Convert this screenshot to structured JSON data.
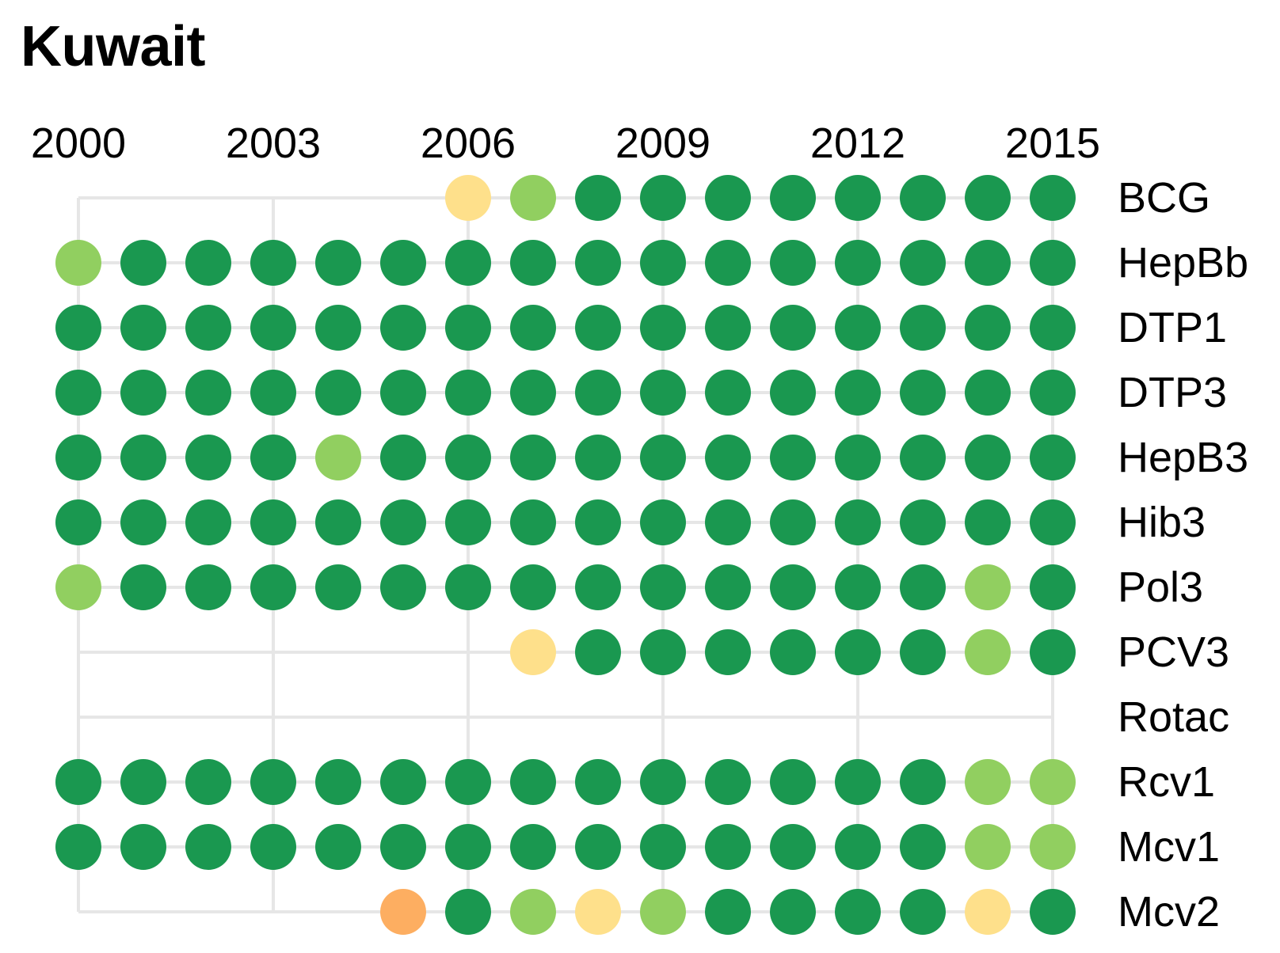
{
  "title": "Kuwait",
  "chart_data": {
    "type": "dot-matrix",
    "title": "Kuwait",
    "years": [
      2000,
      2001,
      2002,
      2003,
      2004,
      2005,
      2006,
      2007,
      2008,
      2009,
      2010,
      2011,
      2012,
      2013,
      2014,
      2015
    ],
    "x_tick_labels": [
      "2000",
      "2003",
      "2006",
      "2009",
      "2012",
      "2015"
    ],
    "grid": true,
    "color_levels": {
      "dark_green": "#1a9850",
      "light_green": "#91cf60",
      "yellow": "#fee08b",
      "orange": "#fdae61"
    },
    "rows": [
      {
        "label": "BCG",
        "values": [
          null,
          null,
          null,
          null,
          null,
          null,
          "yellow",
          "light_green",
          "dark_green",
          "dark_green",
          "dark_green",
          "dark_green",
          "dark_green",
          "dark_green",
          "dark_green",
          "dark_green"
        ]
      },
      {
        "label": "HepBb",
        "values": [
          "light_green",
          "dark_green",
          "dark_green",
          "dark_green",
          "dark_green",
          "dark_green",
          "dark_green",
          "dark_green",
          "dark_green",
          "dark_green",
          "dark_green",
          "dark_green",
          "dark_green",
          "dark_green",
          "dark_green",
          "dark_green"
        ]
      },
      {
        "label": "DTP1",
        "values": [
          "dark_green",
          "dark_green",
          "dark_green",
          "dark_green",
          "dark_green",
          "dark_green",
          "dark_green",
          "dark_green",
          "dark_green",
          "dark_green",
          "dark_green",
          "dark_green",
          "dark_green",
          "dark_green",
          "dark_green",
          "dark_green"
        ]
      },
      {
        "label": "DTP3",
        "values": [
          "dark_green",
          "dark_green",
          "dark_green",
          "dark_green",
          "dark_green",
          "dark_green",
          "dark_green",
          "dark_green",
          "dark_green",
          "dark_green",
          "dark_green",
          "dark_green",
          "dark_green",
          "dark_green",
          "dark_green",
          "dark_green"
        ]
      },
      {
        "label": "HepB3",
        "values": [
          "dark_green",
          "dark_green",
          "dark_green",
          "dark_green",
          "light_green",
          "dark_green",
          "dark_green",
          "dark_green",
          "dark_green",
          "dark_green",
          "dark_green",
          "dark_green",
          "dark_green",
          "dark_green",
          "dark_green",
          "dark_green"
        ]
      },
      {
        "label": "Hib3",
        "values": [
          "dark_green",
          "dark_green",
          "dark_green",
          "dark_green",
          "dark_green",
          "dark_green",
          "dark_green",
          "dark_green",
          "dark_green",
          "dark_green",
          "dark_green",
          "dark_green",
          "dark_green",
          "dark_green",
          "dark_green",
          "dark_green"
        ]
      },
      {
        "label": "Pol3",
        "values": [
          "light_green",
          "dark_green",
          "dark_green",
          "dark_green",
          "dark_green",
          "dark_green",
          "dark_green",
          "dark_green",
          "dark_green",
          "dark_green",
          "dark_green",
          "dark_green",
          "dark_green",
          "dark_green",
          "light_green",
          "dark_green"
        ]
      },
      {
        "label": "PCV3",
        "values": [
          null,
          null,
          null,
          null,
          null,
          null,
          null,
          "yellow",
          "dark_green",
          "dark_green",
          "dark_green",
          "dark_green",
          "dark_green",
          "dark_green",
          "light_green",
          "dark_green"
        ]
      },
      {
        "label": "Rotac",
        "values": [
          null,
          null,
          null,
          null,
          null,
          null,
          null,
          null,
          null,
          null,
          null,
          null,
          null,
          null,
          null,
          null
        ]
      },
      {
        "label": "Rcv1",
        "values": [
          "dark_green",
          "dark_green",
          "dark_green",
          "dark_green",
          "dark_green",
          "dark_green",
          "dark_green",
          "dark_green",
          "dark_green",
          "dark_green",
          "dark_green",
          "dark_green",
          "dark_green",
          "dark_green",
          "light_green",
          "light_green"
        ]
      },
      {
        "label": "Mcv1",
        "values": [
          "dark_green",
          "dark_green",
          "dark_green",
          "dark_green",
          "dark_green",
          "dark_green",
          "dark_green",
          "dark_green",
          "dark_green",
          "dark_green",
          "dark_green",
          "dark_green",
          "dark_green",
          "dark_green",
          "light_green",
          "light_green"
        ]
      },
      {
        "label": "Mcv2",
        "values": [
          null,
          null,
          null,
          null,
          null,
          "orange",
          "dark_green",
          "light_green",
          "yellow",
          "light_green",
          "dark_green",
          "dark_green",
          "dark_green",
          "dark_green",
          "yellow",
          "dark_green"
        ]
      }
    ]
  }
}
